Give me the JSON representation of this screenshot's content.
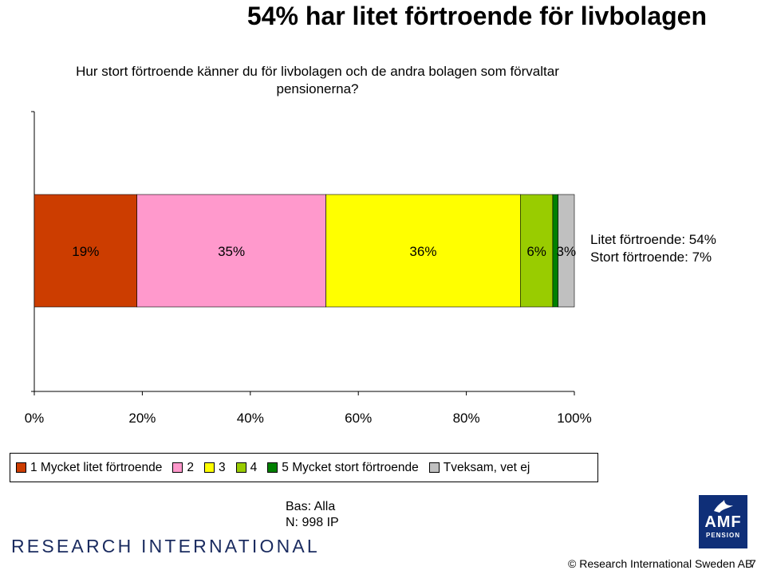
{
  "title": "54% har litet förtroende för livbolagen",
  "question": "Hur stort förtroende känner du för livbolagen och de andra bolagen som förvaltar pensionerna?",
  "side_notes": {
    "litet": "Litet förtroende: 54%",
    "stort": "Stort förtroende: 7%"
  },
  "base": {
    "line1": "Bas: Alla",
    "line2": "N: 998 IP"
  },
  "footer": {
    "research_logo": "RESEARCH INTERNATIONAL",
    "amf_logo": "AMF",
    "amf_sub": "PENSION",
    "copyright": "© Research International Sweden AB",
    "page_number": "7"
  },
  "chart_data": {
    "type": "bar",
    "orientation": "horizontal",
    "stacked": true,
    "categories": [
      ""
    ],
    "xlim": [
      0,
      100
    ],
    "xticks": [
      "0%",
      "20%",
      "40%",
      "60%",
      "80%",
      "100%"
    ],
    "grid": false,
    "legend_position": "bottom",
    "series": [
      {
        "name": "1 Mycket litet förtroende",
        "values": [
          19
        ],
        "label": "19%",
        "color": "#cc3d00"
      },
      {
        "name": "2",
        "values": [
          35
        ],
        "label": "35%",
        "color": "#ff99cc"
      },
      {
        "name": "3",
        "values": [
          36
        ],
        "label": "36%",
        "color": "#ffff00"
      },
      {
        "name": "4",
        "values": [
          6
        ],
        "label": "6%",
        "color": "#99cc00"
      },
      {
        "name": "5 Mycket stort förtroende",
        "values": [
          1
        ],
        "label": "",
        "color": "#008000"
      },
      {
        "name": "Tveksam, vet ej",
        "values": [
          3
        ],
        "label": "3%",
        "color": "#c0c0c0"
      }
    ]
  }
}
